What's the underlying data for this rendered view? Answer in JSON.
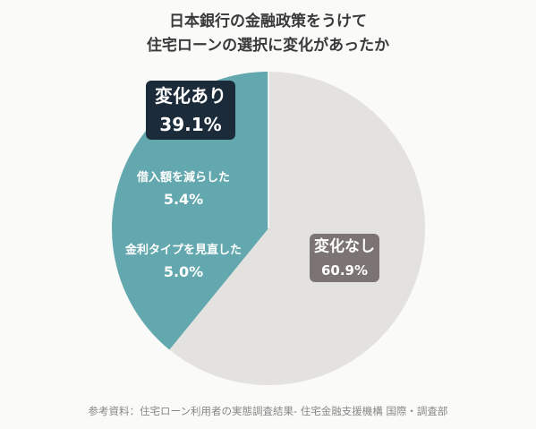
{
  "title_lines": [
    "日本銀行の金融政策をうけて",
    "住宅ローンの選択に変化があったか"
  ],
  "source": "参考資料：住宅ローン利用者の実態調査結果- 住宅金融支援機構 国際・調査部",
  "colors": {
    "changed": "#63a8ae",
    "unchanged": "#e4e2df",
    "badge_dark": "#1c2b3a",
    "badge_gray": "#7c7472",
    "text_white": "#ffffff",
    "divider": "#ffffff"
  },
  "chart_data": {
    "type": "pie",
    "slices": [
      {
        "label": "変化なし",
        "value": 60.9,
        "display": "60.9%",
        "color": "#e4e2df"
      },
      {
        "label": "変化あり",
        "value": 39.1,
        "display": "39.1%",
        "color": "#63a8ae"
      }
    ],
    "sub_breakdown_of_変化あり": [
      {
        "label": "借入額を減らした",
        "value": 5.4,
        "display": "5.4%"
      },
      {
        "label": "金利タイプを見直した",
        "value": 5.0,
        "display": "5.0%"
      }
    ]
  }
}
